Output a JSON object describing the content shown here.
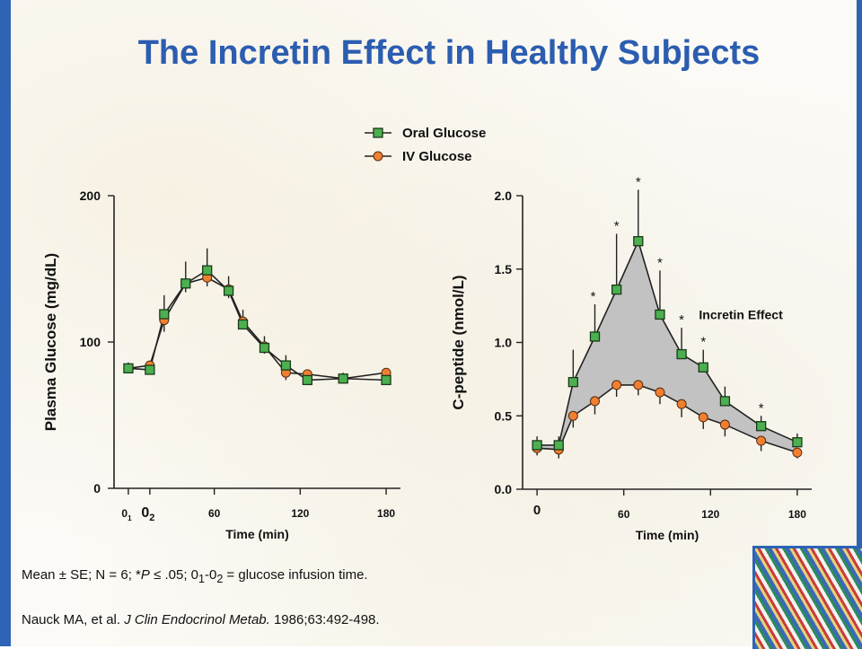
{
  "title": "The Incretin Effect in Healthy Subjects",
  "legend": [
    {
      "label": "Oral Glucose",
      "color": "#4caf50",
      "marker": "square"
    },
    {
      "label": "IV Glucose",
      "color": "#f08030",
      "marker": "circle"
    }
  ],
  "chart_data": [
    {
      "type": "line",
      "ylabel": "Plasma Glucose (mg/dL)",
      "xlabel": "Time (min)",
      "xlim": [
        -10,
        190
      ],
      "ylim": [
        0,
        200
      ],
      "x_ticks": [
        {
          "value": 0,
          "label": "0",
          "sub": "1"
        },
        {
          "value": 15,
          "label": "0",
          "sub": "2"
        },
        {
          "value": 60,
          "label": "60"
        },
        {
          "value": 120,
          "label": "120"
        },
        {
          "value": 180,
          "label": "180"
        }
      ],
      "y_ticks": [
        {
          "value": 0,
          "label": "0"
        },
        {
          "value": 100,
          "label": "100"
        },
        {
          "value": 200,
          "label": "200"
        }
      ],
      "series": [
        {
          "name": "Oral Glucose",
          "points": [
            {
              "x": 0,
              "y": 82,
              "err": 4
            },
            {
              "x": 15,
              "y": 81,
              "err": 4
            },
            {
              "x": 25,
              "y": 119,
              "err": 13
            },
            {
              "x": 40,
              "y": 140,
              "err": 15
            },
            {
              "x": 55,
              "y": 149,
              "err": 15
            },
            {
              "x": 70,
              "y": 135,
              "err": 10
            },
            {
              "x": 80,
              "y": 112,
              "err": 10
            },
            {
              "x": 95,
              "y": 96,
              "err": 8
            },
            {
              "x": 110,
              "y": 84,
              "err": 7
            },
            {
              "x": 125,
              "y": 74,
              "err": 5
            },
            {
              "x": 150,
              "y": 75,
              "err": 4
            },
            {
              "x": 180,
              "y": 74,
              "err": 4
            }
          ]
        },
        {
          "name": "IV Glucose",
          "points": [
            {
              "x": 0,
              "y": 82,
              "err": 3
            },
            {
              "x": 15,
              "y": 84,
              "err": 3
            },
            {
              "x": 25,
              "y": 115,
              "err": 8
            },
            {
              "x": 40,
              "y": 140,
              "err": 6
            },
            {
              "x": 55,
              "y": 144,
              "err": 6
            },
            {
              "x": 70,
              "y": 136,
              "err": 6
            },
            {
              "x": 80,
              "y": 114,
              "err": 5
            },
            {
              "x": 95,
              "y": 97,
              "err": 5
            },
            {
              "x": 110,
              "y": 79,
              "err": 5
            },
            {
              "x": 125,
              "y": 78,
              "err": 4
            },
            {
              "x": 150,
              "y": 75,
              "err": 3
            },
            {
              "x": 180,
              "y": 79,
              "err": 5
            }
          ]
        }
      ]
    },
    {
      "type": "line",
      "ylabel": "C-peptide (nmol/L)",
      "xlabel": "Time (min)",
      "xlim": [
        -10,
        190
      ],
      "ylim": [
        0,
        2.0
      ],
      "x_ticks": [
        {
          "value": 0,
          "label": "0"
        },
        {
          "value": 60,
          "label": "60"
        },
        {
          "value": 120,
          "label": "120"
        },
        {
          "value": 180,
          "label": "180"
        }
      ],
      "y_ticks": [
        {
          "value": 0.0,
          "label": "0.0"
        },
        {
          "value": 0.5,
          "label": "0.5"
        },
        {
          "value": 1.0,
          "label": "1.0"
        },
        {
          "value": 1.5,
          "label": "1.5"
        },
        {
          "value": 2.0,
          "label": "2.0"
        }
      ],
      "fill_label": "Incretin Effect",
      "series": [
        {
          "name": "Oral Glucose",
          "points": [
            {
              "x": 0,
              "y": 0.3,
              "err": 0.06
            },
            {
              "x": 15,
              "y": 0.3,
              "err": 0.06
            },
            {
              "x": 25,
              "y": 0.73,
              "err": 0.22
            },
            {
              "x": 40,
              "y": 1.04,
              "err": 0.22,
              "sig": true
            },
            {
              "x": 55,
              "y": 1.36,
              "err": 0.38,
              "sig": true
            },
            {
              "x": 70,
              "y": 1.69,
              "err": 0.35,
              "sig": true
            },
            {
              "x": 85,
              "y": 1.19,
              "err": 0.3,
              "sig": true
            },
            {
              "x": 100,
              "y": 0.92,
              "err": 0.18,
              "sig": true
            },
            {
              "x": 115,
              "y": 0.83,
              "err": 0.12,
              "sig": true
            },
            {
              "x": 130,
              "y": 0.6,
              "err": 0.1
            },
            {
              "x": 155,
              "y": 0.43,
              "err": 0.07,
              "sig": true
            },
            {
              "x": 180,
              "y": 0.32,
              "err": 0.06
            }
          ]
        },
        {
          "name": "IV Glucose",
          "points": [
            {
              "x": 0,
              "y": 0.28,
              "err": 0.05
            },
            {
              "x": 15,
              "y": 0.27,
              "err": 0.06
            },
            {
              "x": 25,
              "y": 0.5,
              "err": 0.08
            },
            {
              "x": 40,
              "y": 0.6,
              "err": 0.09
            },
            {
              "x": 55,
              "y": 0.71,
              "err": 0.08
            },
            {
              "x": 70,
              "y": 0.71,
              "err": 0.07
            },
            {
              "x": 85,
              "y": 0.66,
              "err": 0.08
            },
            {
              "x": 100,
              "y": 0.58,
              "err": 0.09
            },
            {
              "x": 115,
              "y": 0.49,
              "err": 0.08
            },
            {
              "x": 130,
              "y": 0.44,
              "err": 0.08
            },
            {
              "x": 155,
              "y": 0.33,
              "err": 0.07
            },
            {
              "x": 180,
              "y": 0.25,
              "err": 0.04
            }
          ]
        }
      ]
    }
  ],
  "significance_marker": "*",
  "footnote": {
    "p1": "Mean ± SE; N = 6; *",
    "p_italic": "P",
    "p2": " ≤ .05; 0",
    "sub1": "1",
    "p3": "-0",
    "sub2": "2",
    "p4": " = glucose infusion time."
  },
  "citation": {
    "authors": "Nauck MA, et al. ",
    "journal": "J Clin Endocrinol Metab.",
    "rest": " 1986;63:492-498."
  }
}
